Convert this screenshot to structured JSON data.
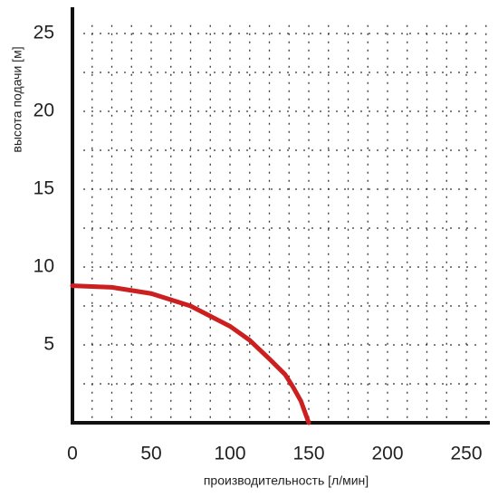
{
  "chart_data": {
    "type": "line",
    "x_label": "производительность [л/мин]",
    "y_label": "высота подачи [м]",
    "x": [
      0,
      25,
      50,
      75,
      100,
      112.5,
      125,
      135,
      140,
      145,
      150
    ],
    "series": [
      {
        "color": "#cc1f1f",
        "values": [
          8.8,
          8.7,
          8.3,
          7.5,
          6.2,
          5.3,
          4.1,
          3.1,
          2.3,
          1.4,
          0
        ]
      }
    ],
    "xlim": [
      0,
      264
    ],
    "ylim": [
      0,
      26.7
    ],
    "xticks": [
      0,
      50,
      100,
      150,
      200,
      250
    ],
    "yticks": [
      5,
      10,
      15,
      20,
      25
    ],
    "x_grid": [
      12.5,
      25,
      37.5,
      50,
      62.5,
      75,
      87.5,
      100,
      112.5,
      125,
      137.5,
      150,
      162.5,
      175,
      187.5,
      200,
      212.5,
      225,
      237.5,
      250,
      262.5
    ],
    "y_grid": [
      2.5,
      5,
      7.5,
      10,
      12.5,
      15,
      17.5,
      20,
      22.5,
      25
    ],
    "grid": true
  }
}
